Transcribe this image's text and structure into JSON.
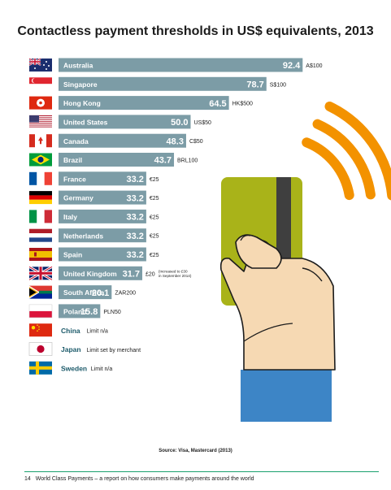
{
  "chart_data": {
    "type": "bar",
    "orientation": "horizontal",
    "title": "Contactless payment thresholds in US$ equivalents, 2013",
    "xlim": [
      0,
      100
    ],
    "colors": {
      "bar": "#7c9ca6",
      "value_text": "#ffffff",
      "value_text_short": "#1c5a6a",
      "country_plain": "#1c5a6a"
    },
    "rows": [
      {
        "country": "Australia",
        "value": 92.4,
        "value_label": "92.4",
        "local": "A$100",
        "flag": "australia-flag"
      },
      {
        "country": "Singapore",
        "value": 78.7,
        "value_label": "78.7",
        "local": "S$100",
        "flag": "singapore-flag"
      },
      {
        "country": "Hong Kong",
        "value": 64.5,
        "value_label": "64.5",
        "local": "HK$500",
        "flag": "hong-kong-flag"
      },
      {
        "country": "United States",
        "value": 50.0,
        "value_label": "50.0",
        "local": "US$50",
        "flag": "us-flag"
      },
      {
        "country": "Canada",
        "value": 48.3,
        "value_label": "48.3",
        "local": "C$50",
        "flag": "canada-flag"
      },
      {
        "country": "Brazil",
        "value": 43.7,
        "value_label": "43.7",
        "local": "BRL100",
        "flag": "brazil-flag"
      },
      {
        "country": "France",
        "value": 33.2,
        "value_label": "33.2",
        "local": "€25",
        "flag": "france-flag"
      },
      {
        "country": "Germany",
        "value": 33.2,
        "value_label": "33.2",
        "local": "€25",
        "flag": "germany-flag"
      },
      {
        "country": "Italy",
        "value": 33.2,
        "value_label": "33.2",
        "local": "€25",
        "flag": "italy-flag"
      },
      {
        "country": "Netherlands",
        "value": 33.2,
        "value_label": "33.2",
        "local": "€25",
        "flag": "netherlands-flag"
      },
      {
        "country": "Spain",
        "value": 33.2,
        "value_label": "33.2",
        "local": "€25",
        "flag": "spain-flag"
      },
      {
        "country": "United Kingdom",
        "value": 31.7,
        "value_label": "31.7",
        "local": "£20",
        "note": [
          "(increased to £30",
          "in September 2014)"
        ],
        "flag": "uk-flag"
      },
      {
        "country": "South Africa",
        "value": 20.1,
        "value_label": "20.1",
        "local": "ZAR200",
        "flag": "south-africa-flag"
      },
      {
        "country": "Poland",
        "value": 15.8,
        "value_label": "15.8",
        "local": "PLN50",
        "flag": "poland-flag"
      }
    ],
    "no_limit_rows": [
      {
        "country": "China",
        "text": "Limit n/a",
        "flag": "china-flag"
      },
      {
        "country": "Japan",
        "text": "Limit set by merchant",
        "flag": "japan-flag"
      },
      {
        "country": "Sweden",
        "text": "Limit n/a",
        "flag": "sweden-flag"
      }
    ]
  },
  "source": "Source: Visa, Mastercard (2013)",
  "footer": {
    "page_number": "14",
    "text": "World Class Payments – a report on how consumers make payments around the world"
  },
  "illustration": {
    "card_color": "#a9b319",
    "stripe_color": "#3f3f3f",
    "skin_color": "#f6d9b3",
    "sleeve_color": "#3d85c6",
    "wave_color": "#f39200"
  }
}
